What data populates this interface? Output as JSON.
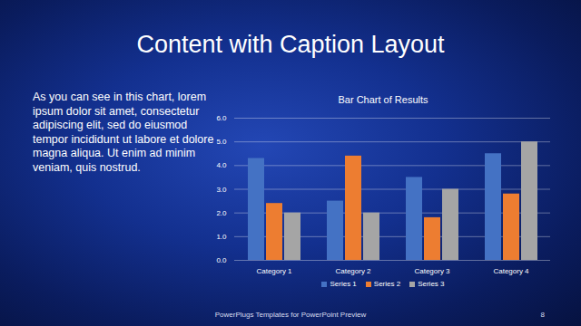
{
  "slide": {
    "title": "Content with Caption Layout",
    "caption": "As you can see in this chart, lorem ipsum dolor sit amet, consectetur adipiscing elit, sed do eiusmod tempor incididunt ut labore et dolore magna aliqua. Ut enim ad minim veniam, quis nostrud.",
    "footer": "PowerPlugs Templates for PowerPoint Preview",
    "page_number": "8"
  },
  "chart_data": {
    "type": "bar",
    "title": "Bar Chart of Results",
    "categories": [
      "Category 1",
      "Category 2",
      "Category 3",
      "Category 4"
    ],
    "series": [
      {
        "name": "Series 1",
        "color": "#4472c4",
        "values": [
          4.3,
          2.5,
          3.5,
          4.5
        ]
      },
      {
        "name": "Series 2",
        "color": "#ed7d31",
        "values": [
          2.4,
          4.4,
          1.8,
          2.8
        ]
      },
      {
        "name": "Series 3",
        "color": "#a5a5a5",
        "values": [
          2,
          2,
          3,
          5
        ]
      }
    ],
    "ylim": [
      0,
      6
    ],
    "yticks": [
      0,
      1,
      2,
      3,
      4,
      5,
      6
    ],
    "grid": true,
    "legend": "bottom"
  }
}
